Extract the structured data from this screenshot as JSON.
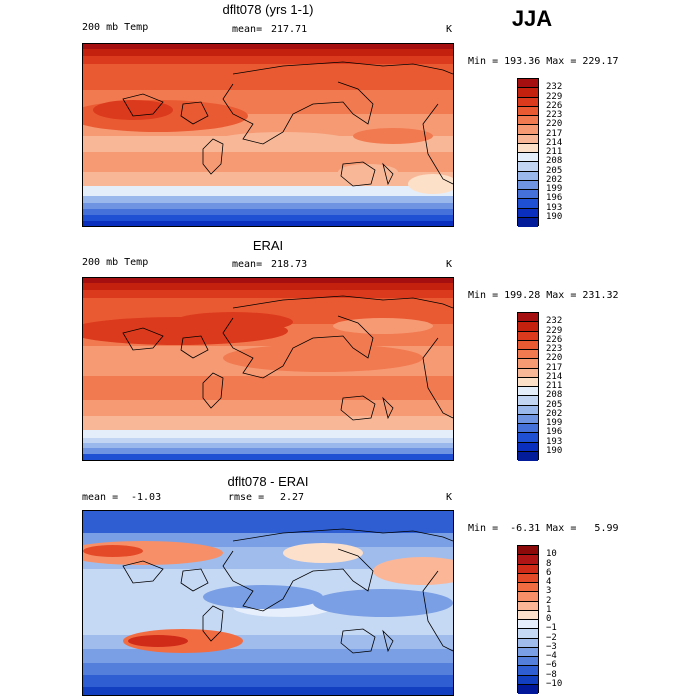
{
  "season": "JJA",
  "panels": [
    {
      "title": "dflt078 (yrs 1-1)",
      "variable": "200 mb Temp",
      "stat1_label": "mean=",
      "stat1_value": "217.71",
      "stat2_label": "",
      "stat2_value": "",
      "units": "K",
      "minmax": "Min = 193.36 Max = 229.17",
      "colorbar": {
        "labels": [
          "232",
          "229",
          "226",
          "223",
          "220",
          "217",
          "214",
          "211",
          "208",
          "205",
          "202",
          "199",
          "196",
          "193",
          "190"
        ],
        "colors": [
          "#a50f0f",
          "#c4220f",
          "#dc3a1c",
          "#ea5a32",
          "#f27a50",
          "#f69a74",
          "#f8b898",
          "#fde0c8",
          "#e4eefb",
          "#c2d6f4",
          "#9ab8ec",
          "#6e94e2",
          "#4472da",
          "#1f4fd2",
          "#0a2fbe",
          "#021c9a"
        ]
      },
      "scheme": "abs1"
    },
    {
      "title": "ERAI",
      "variable": "200 mb Temp",
      "stat1_label": "mean=",
      "stat1_value": "218.73",
      "stat2_label": "",
      "stat2_value": "",
      "units": "K",
      "minmax": "Min = 199.28 Max = 231.32",
      "colorbar": {
        "labels": [
          "232",
          "229",
          "226",
          "223",
          "220",
          "217",
          "214",
          "211",
          "208",
          "205",
          "202",
          "199",
          "196",
          "193",
          "190"
        ],
        "colors": [
          "#a50f0f",
          "#c4220f",
          "#dc3a1c",
          "#ea5a32",
          "#f27a50",
          "#f69a74",
          "#f8b898",
          "#fde0c8",
          "#e4eefb",
          "#c2d6f4",
          "#9ab8ec",
          "#6e94e2",
          "#4472da",
          "#1f4fd2",
          "#0a2fbe",
          "#021c9a"
        ]
      },
      "scheme": "abs2"
    },
    {
      "title": "dflt078 - ERAI",
      "variable": "",
      "stat1_label": "mean =",
      "stat1_value": "-1.03",
      "stat2_label": "rmse =",
      "stat2_value": "2.27",
      "units": "K",
      "minmax": "Min =  -6.31 Max =   5.99",
      "colorbar": {
        "labels": [
          "10",
          "8",
          "6",
          "4",
          "3",
          "2",
          "1",
          "0",
          "−1",
          "−2",
          "−3",
          "−4",
          "−6",
          "−8",
          "−10"
        ],
        "colors": [
          "#8c0a0a",
          "#b01515",
          "#d02a18",
          "#e54a28",
          "#f26c42",
          "#f79068",
          "#fbb698",
          "#fde0cc",
          "#e6effb",
          "#c5d8f4",
          "#9fbcec",
          "#7a9fe4",
          "#5480dc",
          "#2e5ed2",
          "#123fc0",
          "#02189a"
        ]
      },
      "scheme": "diff"
    }
  ]
}
